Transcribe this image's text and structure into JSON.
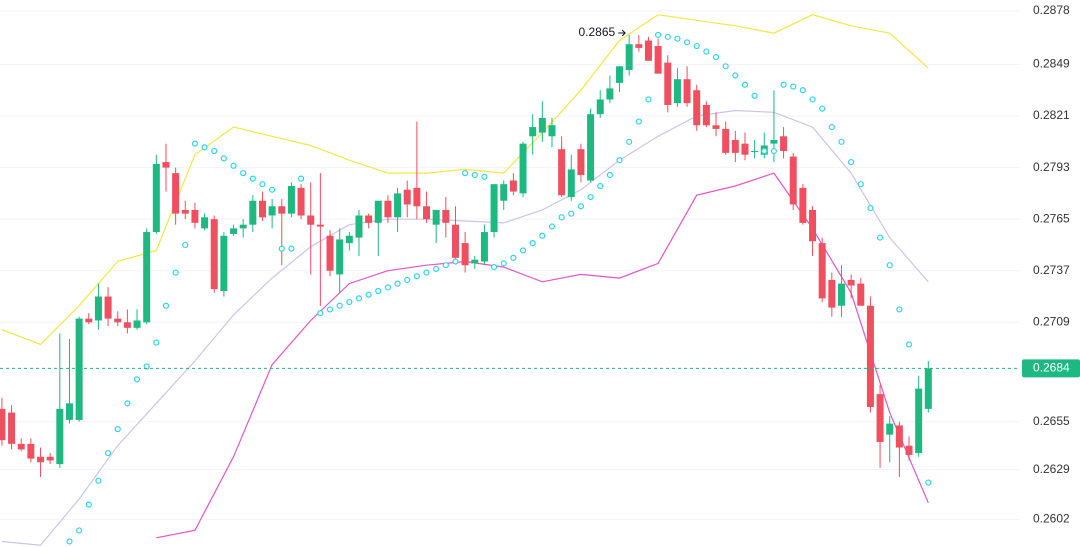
{
  "chart_data": {
    "type": "candlestick",
    "up_color": "#1db981",
    "down_color": "#ef4f5f",
    "xlim": [
      -0.2,
      105.5
    ],
    "ylim": [
      0.2587,
      0.2884
    ],
    "yticks": [
      0.2878,
      0.2849,
      0.2821,
      0.2793,
      0.2765,
      0.2737,
      0.2709,
      0.2655,
      0.2629,
      0.2602
    ],
    "grid": true,
    "open": [
      0.2662,
      0.266,
      0.2643,
      0.2643,
      0.2636,
      0.2636,
      0.2632,
      0.2656,
      0.2656,
      0.2711,
      0.271,
      0.2723,
      0.2711,
      0.2709,
      0.2706,
      0.2709,
      0.2758,
      0.2796,
      0.279,
      0.277,
      0.277,
      0.276,
      0.2765,
      0.2726,
      0.2757,
      0.276,
      0.2762,
      0.2775,
      0.2767,
      0.2772,
      0.2768,
      0.2782,
      0.2767,
      0.2762,
      0.2756,
      0.2735,
      0.2752,
      0.2755,
      0.2767,
      0.2763,
      0.2775,
      0.2766,
      0.2781,
      0.2782,
      0.2772,
      0.2762,
      0.277,
      0.2762,
      0.2752,
      0.2741,
      0.2742,
      0.2758,
      0.2775,
      0.2786,
      0.2779,
      0.281,
      0.2812,
      0.281,
      0.2803,
      0.2777,
      0.2803,
      0.2786,
      0.2822,
      0.283,
      0.2839,
      0.2846,
      0.286,
      0.2862,
      0.2859,
      0.285,
      0.2828,
      0.2841,
      0.2835,
      0.2827,
      0.2816,
      0.2814,
      0.2808,
      0.2806,
      0.2802,
      0.28,
      0.2806,
      0.281,
      0.2799,
      0.2782,
      0.277,
      0.2752,
      0.2732,
      0.2718,
      0.2732,
      0.273,
      0.2718,
      0.267,
      0.2648,
      0.2653,
      0.2642,
      0.2638,
      0.2662
    ],
    "high": [
      0.2668,
      0.2664,
      0.2646,
      0.2646,
      0.2641,
      0.2638,
      0.2703,
      0.27,
      0.2712,
      0.2714,
      0.273,
      0.2728,
      0.2715,
      0.2716,
      0.2716,
      0.276,
      0.28,
      0.2806,
      0.2793,
      0.2775,
      0.2774,
      0.2768,
      0.2767,
      0.2758,
      0.2762,
      0.2765,
      0.2778,
      0.278,
      0.2776,
      0.2776,
      0.2785,
      0.2784,
      0.2785,
      0.279,
      0.2759,
      0.276,
      0.2758,
      0.277,
      0.2768,
      0.2775,
      0.2778,
      0.2782,
      0.2786,
      0.2818,
      0.278,
      0.277,
      0.2777,
      0.2772,
      0.2758,
      0.2745,
      0.2762,
      0.2784,
      0.2786,
      0.279,
      0.2807,
      0.2822,
      0.2829,
      0.282,
      0.281,
      0.28,
      0.2806,
      0.2825,
      0.2835,
      0.2843,
      0.2848,
      0.2865,
      0.2865,
      0.2864,
      0.2863,
      0.2854,
      0.2847,
      0.2848,
      0.2838,
      0.2829,
      0.2823,
      0.2818,
      0.2813,
      0.2812,
      0.2808,
      0.2812,
      0.2835,
      0.2815,
      0.2801,
      0.2784,
      0.2772,
      0.2755,
      0.2736,
      0.274,
      0.2735,
      0.2733,
      0.2723,
      0.2675,
      0.2658,
      0.2655,
      0.2647,
      0.268,
      0.2688
    ],
    "low": [
      0.2642,
      0.264,
      0.2639,
      0.2633,
      0.2625,
      0.2632,
      0.263,
      0.2654,
      0.2655,
      0.2708,
      0.2705,
      0.2707,
      0.2707,
      0.2703,
      0.2705,
      0.2708,
      0.2757,
      0.278,
      0.2762,
      0.2765,
      0.276,
      0.2759,
      0.2725,
      0.2723,
      0.2756,
      0.2755,
      0.2758,
      0.2764,
      0.276,
      0.274,
      0.2766,
      0.2765,
      0.2735,
      0.2718,
      0.2734,
      0.2725,
      0.2748,
      0.2745,
      0.276,
      0.2745,
      0.2763,
      0.2758,
      0.2766,
      0.2765,
      0.2763,
      0.2752,
      0.2755,
      0.2742,
      0.2736,
      0.2738,
      0.274,
      0.2755,
      0.277,
      0.2778,
      0.2777,
      0.28,
      0.2807,
      0.2804,
      0.2777,
      0.2775,
      0.2785,
      0.2785,
      0.282,
      0.2828,
      0.2834,
      0.2843,
      0.2856,
      0.2851,
      0.2844,
      0.2823,
      0.2826,
      0.2826,
      0.2813,
      0.2815,
      0.281,
      0.28,
      0.2796,
      0.2797,
      0.2798,
      0.2798,
      0.2796,
      0.2798,
      0.277,
      0.2762,
      0.2745,
      0.272,
      0.2712,
      0.2712,
      0.2722,
      0.2718,
      0.266,
      0.263,
      0.2633,
      0.2625,
      0.2634,
      0.2636,
      0.266
    ],
    "close": [
      0.2645,
      0.2643,
      0.264,
      0.2635,
      0.2633,
      0.2634,
      0.2662,
      0.2665,
      0.2711,
      0.2709,
      0.2723,
      0.2711,
      0.2709,
      0.2706,
      0.271,
      0.2758,
      0.2795,
      0.2793,
      0.2768,
      0.2768,
      0.2763,
      0.2766,
      0.2727,
      0.2756,
      0.276,
      0.2762,
      0.2775,
      0.2766,
      0.2772,
      0.2768,
      0.2783,
      0.2767,
      0.2762,
      0.2761,
      0.2737,
      0.2754,
      0.2756,
      0.2767,
      0.2763,
      0.2775,
      0.2766,
      0.2779,
      0.2773,
      0.2772,
      0.2765,
      0.277,
      0.2763,
      0.2744,
      0.274,
      0.2743,
      0.2758,
      0.2784,
      0.2784,
      0.278,
      0.2806,
      0.2815,
      0.282,
      0.2816,
      0.2778,
      0.2792,
      0.2789,
      0.2822,
      0.283,
      0.2836,
      0.2848,
      0.286,
      0.2858,
      0.2851,
      0.2844,
      0.2827,
      0.2841,
      0.2828,
      0.2816,
      0.2816,
      0.2814,
      0.2801,
      0.2801,
      0.28,
      0.2802,
      0.2805,
      0.2808,
      0.2802,
      0.2773,
      0.2763,
      0.2753,
      0.2722,
      0.2717,
      0.273,
      0.2729,
      0.2718,
      0.2663,
      0.2644,
      0.2654,
      0.2641,
      0.2637,
      0.2673,
      0.2684
    ],
    "sar": {
      "color": "#2fd3e6",
      "values": [
        null,
        null,
        null,
        null,
        null,
        null,
        null,
        0.259,
        0.2596,
        0.261,
        0.2623,
        0.2638,
        0.2651,
        0.2665,
        0.2678,
        0.2685,
        0.2698,
        0.2718,
        0.2736,
        0.2751,
        0.2806,
        0.2804,
        0.2802,
        0.2798,
        0.2794,
        0.279,
        0.2787,
        0.2784,
        0.2781,
        0.2749,
        0.2749,
        0.2787,
        null,
        0.2714,
        0.2716,
        0.2718,
        0.272,
        0.2722,
        0.2724,
        0.2726,
        0.2728,
        0.273,
        0.2732,
        0.2734,
        0.2736,
        0.2738,
        0.274,
        0.2742,
        0.279,
        0.2789,
        0.2788,
        0.2739,
        0.2741,
        0.2744,
        0.2748,
        0.2752,
        0.2756,
        0.2761,
        0.2766,
        0.2768,
        0.2772,
        0.2777,
        0.2783,
        0.2789,
        0.2797,
        0.2807,
        0.2818,
        0.283,
        0.2865,
        0.2864,
        0.2863,
        0.2861,
        0.2859,
        0.2856,
        0.2853,
        0.2848,
        0.2843,
        0.2838,
        0.2832,
        0.2802,
        0.2802,
        0.2838,
        0.2837,
        0.2835,
        0.283,
        0.2825,
        0.2815,
        0.2807,
        0.2796,
        0.2784,
        0.2771,
        0.2755,
        0.274,
        0.2716,
        0.2697,
        null,
        0.2622
      ]
    },
    "bands": {
      "x": [
        0,
        4,
        8,
        12,
        16,
        20,
        24,
        28,
        32,
        36,
        40,
        44,
        48,
        52,
        56,
        60,
        64,
        68,
        72,
        76,
        80,
        84,
        88,
        92,
        96
      ],
      "series": [
        {
          "color": "#f5e642",
          "values": [
            0.2705,
            0.2697,
            0.2718,
            0.2742,
            0.2748,
            0.28,
            0.2815,
            0.281,
            0.2805,
            0.2797,
            0.279,
            0.279,
            0.2792,
            0.279,
            0.2812,
            0.2835,
            0.2862,
            0.2876,
            0.2873,
            0.287,
            0.2866,
            0.2876,
            0.287,
            0.2866,
            0.2847
          ]
        },
        {
          "color": "#c9c5e8",
          "values": [
            0.259,
            0.2588,
            0.2613,
            0.2642,
            0.2665,
            0.2688,
            0.2713,
            0.2733,
            0.275,
            0.2762,
            0.2765,
            0.2765,
            0.2764,
            0.2763,
            0.277,
            0.2781,
            0.2797,
            0.281,
            0.2821,
            0.2824,
            0.2823,
            0.2815,
            0.279,
            0.2755,
            0.2731
          ]
        },
        {
          "color": "#e254c8",
          "values": [
            null,
            null,
            null,
            null,
            0.2592,
            0.2596,
            0.2636,
            0.2686,
            0.271,
            0.273,
            0.2737,
            0.274,
            0.2742,
            0.2739,
            0.2731,
            0.2735,
            0.2733,
            0.2741,
            0.2778,
            0.2783,
            0.279,
            0.276,
            0.2725,
            0.266,
            0.2611
          ]
        }
      ]
    },
    "last_price": 0.2684,
    "last_price_color": "#1db981",
    "high_label": 0.2865,
    "high_label_index": 65
  }
}
